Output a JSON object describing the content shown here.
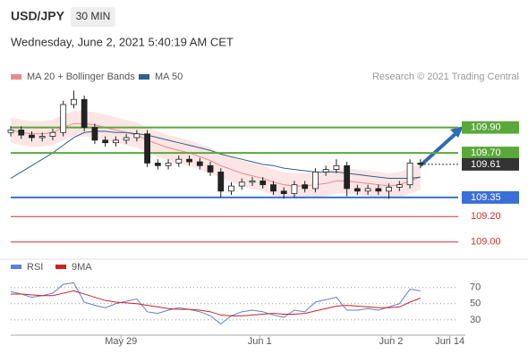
{
  "header": {
    "symbol": "USD/JPY",
    "interval": "30 MIN",
    "date": "Wednesday, June 2, 2021 5:40:19 AM CET"
  },
  "chart_data": [
    {
      "type": "candlestick",
      "legend": [
        {
          "name": "MA 20 + Bollinger Bands",
          "color": "#e88a8a"
        },
        {
          "name": "MA 50",
          "color": "#2f5f8f"
        }
      ],
      "annotation": "Research © 2021 Trading Central",
      "xlim": [
        0,
        42
      ],
      "ylim": [
        108.9,
        110.48
      ],
      "open": [
        109.86,
        109.88,
        109.84,
        109.82,
        109.83,
        109.86,
        110.08,
        110.12,
        109.9,
        109.8,
        109.78,
        109.8,
        109.82,
        109.85,
        109.62,
        109.6,
        109.62,
        109.65,
        109.63,
        109.6,
        109.55,
        109.4,
        109.44,
        109.47,
        109.48,
        109.45,
        109.4,
        109.38,
        109.45,
        109.42,
        109.55,
        109.57,
        109.6,
        109.42,
        109.4,
        109.42,
        109.4,
        109.43,
        109.45,
        109.62
      ],
      "high": [
        109.91,
        109.91,
        109.87,
        109.86,
        109.89,
        110.11,
        110.19,
        110.15,
        109.93,
        109.83,
        109.83,
        109.85,
        109.88,
        109.88,
        109.65,
        109.65,
        109.68,
        109.68,
        109.66,
        109.63,
        109.58,
        109.47,
        109.5,
        109.51,
        109.51,
        109.48,
        109.43,
        109.48,
        109.48,
        109.58,
        109.6,
        109.65,
        109.63,
        109.45,
        109.45,
        109.45,
        109.46,
        109.48,
        109.65,
        109.65
      ],
      "low": [
        109.83,
        109.81,
        109.79,
        109.79,
        109.8,
        109.83,
        110.05,
        109.87,
        109.77,
        109.75,
        109.75,
        109.77,
        109.79,
        109.59,
        109.57,
        109.57,
        109.59,
        109.6,
        109.57,
        109.52,
        109.35,
        109.37,
        109.41,
        109.44,
        109.42,
        109.37,
        109.34,
        109.35,
        109.39,
        109.39,
        109.52,
        109.54,
        109.36,
        109.37,
        109.37,
        109.37,
        109.34,
        109.4,
        109.42,
        109.58
      ],
      "close": [
        109.88,
        109.84,
        109.82,
        109.83,
        109.86,
        110.08,
        110.12,
        109.9,
        109.8,
        109.78,
        109.8,
        109.82,
        109.85,
        109.62,
        109.6,
        109.62,
        109.65,
        109.63,
        109.6,
        109.55,
        109.4,
        109.44,
        109.47,
        109.48,
        109.45,
        109.4,
        109.38,
        109.45,
        109.42,
        109.55,
        109.57,
        109.6,
        109.42,
        109.4,
        109.42,
        109.4,
        109.43,
        109.45,
        109.62,
        109.61
      ],
      "ma20": [
        109.88,
        109.86,
        109.85,
        109.85,
        109.86,
        109.9,
        109.93,
        109.93,
        109.92,
        109.9,
        109.88,
        109.86,
        109.84,
        109.8,
        109.77,
        109.74,
        109.72,
        109.7,
        109.67,
        109.64,
        109.6,
        109.57,
        109.54,
        109.52,
        109.5,
        109.47,
        109.45,
        109.44,
        109.44,
        109.45,
        109.46,
        109.48,
        109.48,
        109.47,
        109.46,
        109.45,
        109.44,
        109.45,
        109.48,
        109.51
      ],
      "band_upper": [
        109.98,
        109.96,
        109.95,
        109.95,
        109.96,
        110.0,
        110.03,
        110.03,
        110.02,
        110.0,
        109.98,
        109.96,
        109.94,
        109.9,
        109.87,
        109.84,
        109.82,
        109.8,
        109.77,
        109.74,
        109.7,
        109.67,
        109.64,
        109.62,
        109.6,
        109.57,
        109.55,
        109.54,
        109.54,
        109.55,
        109.56,
        109.58,
        109.58,
        109.57,
        109.56,
        109.55,
        109.54,
        109.55,
        109.58,
        109.61
      ],
      "band_lower": [
        109.78,
        109.76,
        109.75,
        109.75,
        109.76,
        109.8,
        109.83,
        109.83,
        109.82,
        109.8,
        109.78,
        109.76,
        109.74,
        109.7,
        109.67,
        109.64,
        109.62,
        109.6,
        109.57,
        109.54,
        109.5,
        109.47,
        109.44,
        109.42,
        109.4,
        109.37,
        109.35,
        109.34,
        109.34,
        109.35,
        109.36,
        109.38,
        109.38,
        109.37,
        109.36,
        109.35,
        109.34,
        109.35,
        109.38,
        109.41
      ],
      "ma50": [
        109.5,
        109.55,
        109.6,
        109.65,
        109.7,
        109.76,
        109.82,
        109.86,
        109.87,
        109.87,
        109.86,
        109.86,
        109.85,
        109.84,
        109.82,
        109.8,
        109.78,
        109.76,
        109.74,
        109.72,
        109.69,
        109.67,
        109.65,
        109.63,
        109.61,
        109.6,
        109.58,
        109.57,
        109.56,
        109.55,
        109.55,
        109.55,
        109.54,
        109.53,
        109.52,
        109.51,
        109.5,
        109.5,
        109.5,
        109.51
      ],
      "levels": [
        {
          "value": 109.9,
          "label": "109.90",
          "color": "#5aa83a",
          "boxed": true
        },
        {
          "value": 109.7,
          "label": "109.70",
          "color": "#5aa83a",
          "boxed": true
        },
        {
          "value": 109.61,
          "label": "109.61",
          "color": "#333333",
          "boxed": true
        },
        {
          "value": 109.35,
          "label": "109.35",
          "color": "#3a6fd8",
          "boxed": true
        },
        {
          "value": 109.2,
          "label": "109.20",
          "color": "#d03030",
          "boxed": false
        },
        {
          "value": 109.0,
          "label": "109.00",
          "color": "#d03030",
          "boxed": false
        }
      ]
    },
    {
      "type": "line",
      "xlim": [
        0,
        42
      ],
      "ylim": [
        11,
        83
      ],
      "yticks": [
        70,
        50,
        30
      ],
      "xticks": [
        {
          "value": 10.5,
          "label": "May 29"
        },
        {
          "value": 23.7,
          "label": "Jun 1"
        },
        {
          "value": 36.2,
          "label": "Jun 2"
        },
        {
          "value": 41.8,
          "label": "Jun 14"
        }
      ],
      "series": [
        {
          "name": "RSI",
          "color": "#5b7fd6",
          "values": [
            65,
            62,
            58,
            60,
            63,
            74,
            76,
            52,
            48,
            45,
            50,
            53,
            56,
            40,
            38,
            42,
            45,
            43,
            40,
            35,
            25,
            35,
            40,
            42,
            40,
            36,
            33,
            42,
            40,
            52,
            55,
            58,
            42,
            42,
            44,
            42,
            46,
            50,
            68,
            66
          ]
        },
        {
          "name": "9MA",
          "color": "#d02020",
          "values": [
            62,
            62,
            61,
            60,
            60,
            63,
            66,
            62,
            58,
            54,
            52,
            51,
            50,
            48,
            46,
            44,
            43,
            43,
            42,
            40,
            36,
            35,
            35,
            36,
            37,
            38,
            37,
            37,
            38,
            41,
            44,
            47,
            48,
            47,
            46,
            45,
            45,
            46,
            52,
            57
          ]
        }
      ]
    }
  ]
}
